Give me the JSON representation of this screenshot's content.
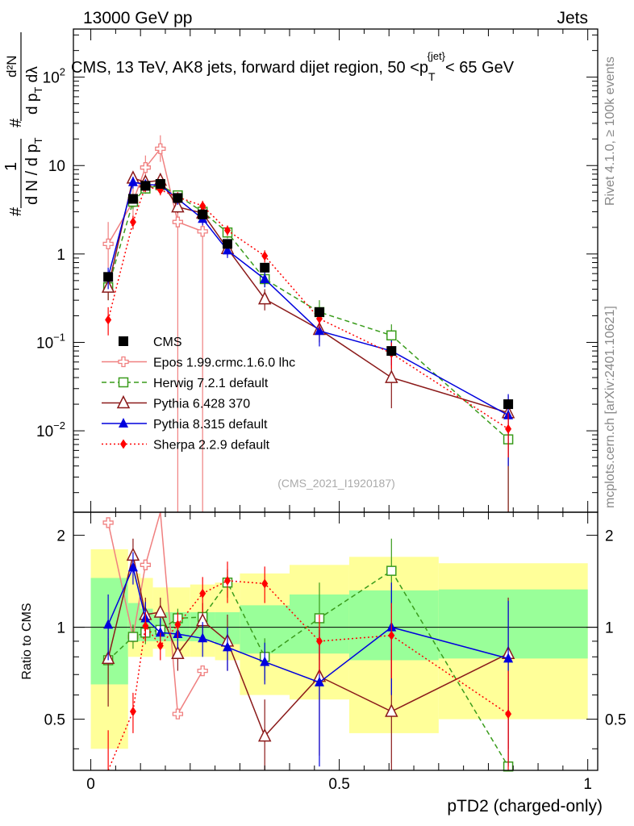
{
  "header": {
    "left": "13000 GeV pp",
    "right": "Jets"
  },
  "side_labels": {
    "rivet": "Rivet 4.1.0, ≥ 100k events",
    "mcplots": "mcplots.cern.ch [arXiv:2401.10621]"
  },
  "chart_data": {
    "type": "line",
    "title": "CMS, 13 TeV, AK8 jets, forward dijet region, 50 <p_T^{jet}< 65 GeV",
    "title_parts": {
      "pre": "CMS, 13 TeV, AK8 jets, forward dijet region, 50 <p",
      "sub": "T",
      "sup": "{jet}",
      "post": "< 65 GeV"
    },
    "analysis_id": "(CMS_2021_I1920187)",
    "xlabel": "pTD2 (charged-only)",
    "ylabel": {
      "top_num": "1",
      "top_den": "d N / d p",
      "top_den_sub": "T",
      "bot_num": "d²N",
      "bot_den": "d p",
      "bot_den_sub": "T",
      "bot_den_post": " dλ",
      "hash": "#"
    },
    "ratio_ylabel": "Ratio to CMS",
    "xlim": [
      -0.035,
      1.02
    ],
    "ylim": [
      0.0012,
      350
    ],
    "ratio_ylim": [
      0.34,
      2.38
    ],
    "x_ticks": [
      0,
      0.5,
      1
    ],
    "x_tick_labels": [
      "0",
      "0.5",
      "1"
    ],
    "y_tick_labels": [
      {
        "v": 100,
        "base": "10",
        "exp": "2"
      },
      {
        "v": 10,
        "base": "10",
        "exp": ""
      },
      {
        "v": 1,
        "base": "1",
        "exp": ""
      },
      {
        "v": 0.1,
        "base": "10",
        "exp": "−1"
      },
      {
        "v": 0.01,
        "base": "10",
        "exp": "−2"
      }
    ],
    "ratio_ticks": [
      0.5,
      1,
      2
    ],
    "ratio_tick_labels": [
      "0.5",
      "1",
      "2"
    ],
    "bins": [
      [
        0.0,
        0.075
      ],
      [
        0.075,
        0.1
      ],
      [
        0.1,
        0.125
      ],
      [
        0.125,
        0.15
      ],
      [
        0.15,
        0.2
      ],
      [
        0.2,
        0.25
      ],
      [
        0.25,
        0.3
      ],
      [
        0.3,
        0.4
      ],
      [
        0.4,
        0.52
      ],
      [
        0.52,
        0.7
      ],
      [
        0.7,
        1.0
      ]
    ],
    "band_inner": [
      [
        0.65,
        1.45
      ],
      [
        0.9,
        1.2
      ],
      [
        0.9,
        1.15
      ],
      [
        0.9,
        1.1
      ],
      [
        0.9,
        1.12
      ],
      [
        0.9,
        1.12
      ],
      [
        0.88,
        1.12
      ],
      [
        0.82,
        1.18
      ],
      [
        0.82,
        1.28
      ],
      [
        0.78,
        1.32
      ],
      [
        0.79,
        1.33
      ]
    ],
    "band_outer": [
      [
        0.4,
        1.8
      ],
      [
        0.8,
        1.5
      ],
      [
        0.8,
        1.45
      ],
      [
        0.85,
        1.35
      ],
      [
        0.8,
        1.35
      ],
      [
        0.8,
        1.38
      ],
      [
        0.78,
        1.4
      ],
      [
        0.6,
        1.5
      ],
      [
        0.58,
        1.6
      ],
      [
        0.45,
        1.7
      ],
      [
        0.5,
        1.62
      ]
    ],
    "legend": [
      {
        "name": "CMS",
        "key": "cms"
      },
      {
        "name": "Epos 1.99.crmc.1.6.0 lhc",
        "key": "epos"
      },
      {
        "name": "Herwig 7.2.1 default",
        "key": "herwig"
      },
      {
        "name": "Pythia 6.428 370",
        "key": "py6"
      },
      {
        "name": "Pythia 8.315 default",
        "key": "py8"
      },
      {
        "name": "Sherpa 2.2.9 default",
        "key": "sherpa"
      }
    ],
    "series": [
      {
        "key": "cms",
        "name": "CMS",
        "color": "#000000",
        "marker": "square-filled",
        "line": "none",
        "x": [
          0.035,
          0.085,
          0.11,
          0.14,
          0.175,
          0.225,
          0.275,
          0.35,
          0.46,
          0.605,
          0.84
        ],
        "y": [
          0.55,
          4.2,
          5.9,
          6.2,
          4.3,
          2.8,
          1.3,
          0.7,
          0.22,
          0.08,
          0.02
        ]
      },
      {
        "key": "epos",
        "name": "Epos 1.99.crmc.1.6.0 lhc",
        "color": "#f08080",
        "marker": "cross-open",
        "line": "solid",
        "x": [
          0.035,
          0.085,
          0.11,
          0.14,
          0.175,
          0.225
        ],
        "y": [
          1.3,
          3.9,
          9.5,
          15.5,
          2.3,
          1.8
        ],
        "err": [
          [
            0.7,
            2.3
          ],
          [
            2.5,
            5.5
          ],
          [
            6,
            13
          ],
          [
            11,
            22
          ],
          [
            0.0001,
            4.6
          ],
          [
            0.0001,
            3.6
          ]
        ],
        "ratio": [
          2.2,
          0.93,
          1.6,
          2.45,
          0.52,
          0.72
        ]
      },
      {
        "key": "herwig",
        "name": "Herwig 7.2.1 default",
        "color": "#3a9c1c",
        "marker": "square-open",
        "line": "dashed",
        "x": [
          0.035,
          0.085,
          0.11,
          0.14,
          0.175,
          0.225,
          0.275,
          0.35,
          0.46,
          0.605,
          0.84
        ],
        "y": [
          0.42,
          3.9,
          5.5,
          6.0,
          4.6,
          3.0,
          1.75,
          0.52,
          0.22,
          0.12,
          0.008
        ],
        "err": [
          [
            0.3,
            0.55
          ],
          [
            3.2,
            4.6
          ],
          [
            4.8,
            6.2
          ],
          [
            5.3,
            6.7
          ],
          [
            4.0,
            5.2
          ],
          [
            2.6,
            3.4
          ],
          [
            1.5,
            2.0
          ],
          [
            0.42,
            0.62
          ],
          [
            0.17,
            0.3
          ],
          [
            0.085,
            0.16
          ],
          [
            0.0001,
            0.012
          ]
        ],
        "ratio": [
          0.78,
          0.93,
          0.96,
          0.98,
          1.07,
          1.08,
          1.4,
          0.8,
          1.07,
          1.53,
          0.35
        ],
        "ratio_err": [
          [
            0.65,
            0.92
          ],
          [
            0.85,
            1.02
          ],
          [
            0.88,
            1.05
          ],
          [
            0.9,
            1.05
          ],
          [
            0.98,
            1.15
          ],
          [
            0.98,
            1.2
          ],
          [
            1.25,
            1.55
          ],
          [
            0.67,
            0.92
          ],
          [
            0.78,
            1.4
          ],
          [
            1.15,
            1.95
          ],
          [
            0.2,
            0.55
          ]
        ]
      },
      {
        "key": "py6",
        "name": "Pythia 6.428 370",
        "color": "#8b1a1a",
        "marker": "triangle-open",
        "line": "solid",
        "x": [
          0.035,
          0.085,
          0.11,
          0.14,
          0.175,
          0.225,
          0.275,
          0.35,
          0.46,
          0.605,
          0.84
        ],
        "y": [
          0.42,
          7.2,
          6.5,
          6.8,
          3.4,
          2.9,
          1.15,
          0.31,
          0.14,
          0.04,
          0.016
        ],
        "err": [
          [
            0.3,
            0.55
          ],
          [
            6.2,
            8.4
          ],
          [
            5.6,
            7.4
          ],
          [
            5.9,
            7.7
          ],
          [
            2.9,
            3.9
          ],
          [
            2.5,
            3.3
          ],
          [
            0.95,
            1.35
          ],
          [
            0.23,
            0.4
          ],
          [
            0.1,
            0.18
          ],
          [
            0.018,
            0.065
          ],
          [
            0.0001,
            0.025
          ]
        ],
        "ratio": [
          0.79,
          1.72,
          1.1,
          1.12,
          0.82,
          1.05,
          0.9,
          0.44,
          0.69,
          0.53,
          0.82
        ],
        "ratio_err": [
          [
            0.55,
            1.05
          ],
          [
            1.5,
            1.95
          ],
          [
            0.95,
            1.25
          ],
          [
            1.0,
            1.25
          ],
          [
            0.72,
            0.92
          ],
          [
            0.9,
            1.2
          ],
          [
            0.72,
            1.1
          ],
          [
            0.3,
            0.58
          ],
          [
            0.38,
            1.0
          ],
          [
            0.2,
            0.85
          ],
          [
            0.4,
            1.25
          ]
        ]
      },
      {
        "key": "py8",
        "name": "Pythia 8.315 default",
        "color": "#0000dd",
        "marker": "triangle-filled",
        "line": "solid",
        "x": [
          0.035,
          0.085,
          0.11,
          0.14,
          0.175,
          0.225,
          0.275,
          0.35,
          0.46,
          0.605,
          0.84
        ],
        "y": [
          0.55,
          6.5,
          6.1,
          6.0,
          4.2,
          2.5,
          1.1,
          0.52,
          0.135,
          0.08,
          0.015
        ],
        "err": [
          [
            0.4,
            0.7
          ],
          [
            5.5,
            7.5
          ],
          [
            5.3,
            6.9
          ],
          [
            5.2,
            6.8
          ],
          [
            3.6,
            4.8
          ],
          [
            2.1,
            2.9
          ],
          [
            0.9,
            1.3
          ],
          [
            0.42,
            0.62
          ],
          [
            0.09,
            0.18
          ],
          [
            0.055,
            0.105
          ],
          [
            0.004,
            0.026
          ]
        ],
        "ratio": [
          1.02,
          1.57,
          1.07,
          0.96,
          0.95,
          0.92,
          0.86,
          0.77,
          0.66,
          1.0,
          0.79
        ],
        "ratio_err": [
          [
            0.78,
            1.28
          ],
          [
            1.38,
            1.76
          ],
          [
            0.93,
            1.21
          ],
          [
            0.85,
            1.07
          ],
          [
            0.85,
            1.05
          ],
          [
            0.8,
            1.04
          ],
          [
            0.72,
            1.0
          ],
          [
            0.65,
            0.89
          ],
          [
            0.35,
            0.98
          ],
          [
            0.6,
            1.4
          ],
          [
            0.35,
            1.22
          ]
        ]
      },
      {
        "key": "sherpa",
        "name": "Sherpa 2.2.9 default",
        "color": "#ff0000",
        "marker": "diamond-filled",
        "line": "dotted",
        "x": [
          0.035,
          0.085,
          0.11,
          0.14,
          0.175,
          0.225,
          0.275,
          0.35,
          0.46,
          0.605,
          0.84
        ],
        "y": [
          0.18,
          2.3,
          5.8,
          5.3,
          4.4,
          3.5,
          1.85,
          0.95,
          0.185,
          0.075,
          0.0105
        ],
        "err": [
          [
            0.12,
            0.25
          ],
          [
            1.9,
            2.7
          ],
          [
            5.0,
            6.6
          ],
          [
            4.6,
            6.0
          ],
          [
            3.8,
            5.0
          ],
          [
            3.0,
            4.0
          ],
          [
            1.6,
            2.1
          ],
          [
            0.8,
            1.1
          ],
          [
            0.14,
            0.23
          ],
          [
            0.05,
            0.1
          ],
          [
            0.005,
            0.016
          ]
        ],
        "ratio": [
          0.33,
          0.53,
          1.01,
          0.87,
          1.02,
          1.29,
          1.42,
          1.39,
          0.9,
          0.94,
          0.52
        ],
        "ratio_err": [
          [
            0.2,
            0.46
          ],
          [
            0.45,
            0.61
          ],
          [
            0.9,
            1.12
          ],
          [
            0.78,
            0.96
          ],
          [
            0.92,
            1.12
          ],
          [
            1.12,
            1.46
          ],
          [
            1.2,
            1.64
          ],
          [
            1.2,
            1.58
          ],
          [
            0.7,
            1.1
          ],
          [
            0.68,
            1.2
          ],
          [
            0.32,
            0.72
          ]
        ]
      }
    ]
  }
}
